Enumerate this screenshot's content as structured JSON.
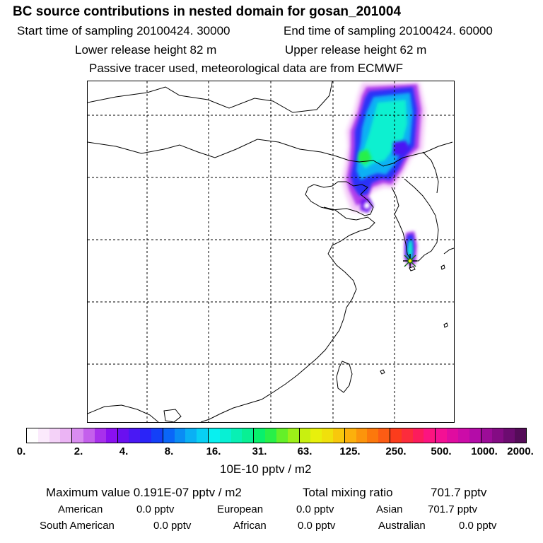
{
  "header": {
    "title": "BC  source contributions in nested domain for gosan_201004",
    "start_label": "Start time of sampling 20100424. 30000",
    "end_label": "End time of sampling 20100424. 60000",
    "lower_label": "Lower release height   82 m",
    "upper_label": "Upper release height   62 m",
    "tracer_note": "Passive tracer used, meteorological data are from ECMWF"
  },
  "colorbar": {
    "tick_labels": [
      "0.",
      "2.",
      "4.",
      "8.",
      "16.",
      "31.",
      "63.",
      "125.",
      "250.",
      "500.",
      "1000.",
      "2000."
    ],
    "unit_label": "10E-10 pptv / m2",
    "colors": [
      "#ffffff",
      "#fbeafc",
      "#f4d2f8",
      "#ebb4f4",
      "#d98cf0",
      "#c460ec",
      "#a830ec",
      "#8a10f0",
      "#6a10f0",
      "#4a18f4",
      "#2a24f8",
      "#1440f8",
      "#0a66f8",
      "#0a8cf4",
      "#0ab0f4",
      "#08d0f4",
      "#08f0f0",
      "#08f0d4",
      "#08f0b4",
      "#08f094",
      "#08f06c",
      "#28f048",
      "#64f028",
      "#9cf018",
      "#c8f010",
      "#e8f00c",
      "#f0e00c",
      "#f8c80c",
      "#fcb00c",
      "#fc940c",
      "#fc780c",
      "#fc5c14",
      "#fc3c1c",
      "#fc2c3c",
      "#fc1c5c",
      "#fc1480",
      "#f41094",
      "#e00ca0",
      "#cc0ca8",
      "#b40ca8",
      "#9c0c98",
      "#840c84",
      "#6c0c70",
      "#540c58"
    ]
  },
  "stats": {
    "max_label": "Maximum value  0.191E-07 pptv / m2",
    "total_label": "Total mixing ratio",
    "total_value": "701.7 pptv",
    "regions": [
      {
        "name": "American",
        "value": "0.0 pptv"
      },
      {
        "name": "European",
        "value": "0.0 pptv"
      },
      {
        "name": "Asian",
        "value": "701.7 pptv"
      },
      {
        "name": "South American",
        "value": "0.0 pptv"
      },
      {
        "name": "African",
        "value": "0.0 pptv"
      },
      {
        "name": "Australian",
        "value": "0.0 pptv"
      }
    ]
  }
}
